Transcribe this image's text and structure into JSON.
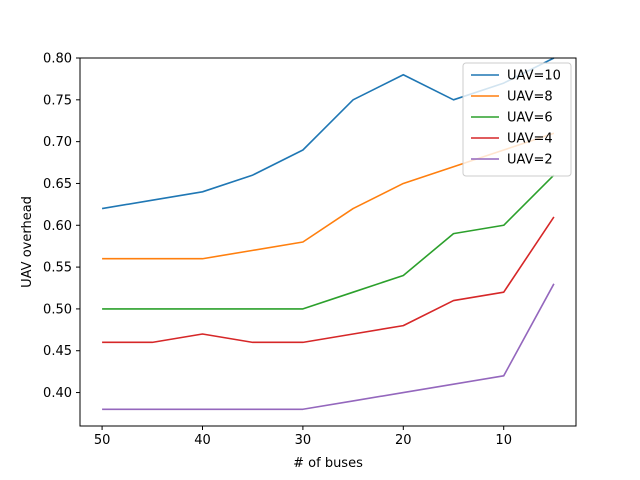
{
  "chart_data": {
    "type": "line",
    "x": [
      50,
      45,
      40,
      35,
      30,
      25,
      20,
      15,
      10,
      5
    ],
    "x_ticks": [
      50,
      40,
      30,
      20,
      10
    ],
    "x_inverted": true,
    "xlabel": "# of buses",
    "ylabel": "UAV overhead",
    "xlim": [
      52.2,
      2.8
    ],
    "ylim": [
      0.36,
      0.8
    ],
    "y_ticks": [
      "0.40",
      "0.45",
      "0.50",
      "0.55",
      "0.60",
      "0.65",
      "0.70",
      "0.75",
      "0.80"
    ],
    "grid": false,
    "legend_position": "top-right",
    "series": [
      {
        "name": "UAV=10",
        "color": "#1f77b4",
        "values": [
          0.62,
          0.63,
          0.64,
          0.66,
          0.69,
          0.75,
          0.78,
          0.75,
          0.77,
          0.8
        ]
      },
      {
        "name": "UAV=8",
        "color": "#ff7f0e",
        "values": [
          0.56,
          0.56,
          0.56,
          0.57,
          0.58,
          0.62,
          0.65,
          0.67,
          0.69,
          0.71
        ]
      },
      {
        "name": "UAV=6",
        "color": "#2ca02c",
        "values": [
          0.5,
          0.5,
          0.5,
          0.5,
          0.5,
          0.52,
          0.54,
          0.59,
          0.6,
          0.66
        ]
      },
      {
        "name": "UAV=4",
        "color": "#d62728",
        "values": [
          0.46,
          0.46,
          0.47,
          0.46,
          0.46,
          0.47,
          0.48,
          0.51,
          0.52,
          0.61
        ]
      },
      {
        "name": "UAV=2",
        "color": "#9467bd",
        "values": [
          0.38,
          0.38,
          0.38,
          0.38,
          0.38,
          0.39,
          0.4,
          0.41,
          0.42,
          0.53
        ]
      }
    ]
  }
}
